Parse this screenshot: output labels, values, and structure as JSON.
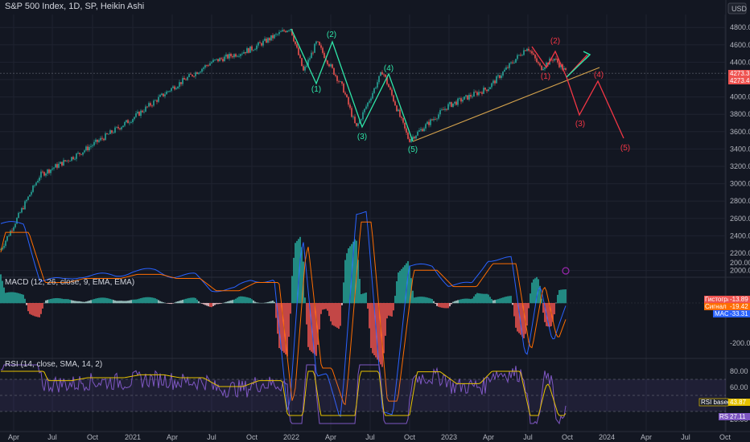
{
  "header": {
    "symbol_title": "S&P 500 Index, 1D, SP, Heikin Ashi",
    "currency": "USD"
  },
  "colors": {
    "background": "#131722",
    "up": "#26a69a",
    "down": "#ef5350",
    "wave_green": "#2ee6a8",
    "wave_red": "#f23645",
    "trendline": "#d4a24c",
    "macd_line": "#2962ff",
    "signal_line": "#ff6d00",
    "rsi_line": "#7e57c2",
    "rsi_ma": "#e6c200"
  },
  "x_axis": {
    "labels": [
      "Apr",
      "Jul",
      "Oct",
      "2021",
      "Apr",
      "Jul",
      "Oct",
      "2022",
      "Apr",
      "Jul",
      "Oct",
      "2023",
      "Apr",
      "Jul",
      "Oct",
      "2024",
      "Apr",
      "Jul",
      "Oct"
    ]
  },
  "price_axis": {
    "ticks": [
      "4800.00",
      "4600.00",
      "4400.00",
      "4200.00",
      "4000.00",
      "3800.00",
      "3600.00",
      "3400.00",
      "3200.00",
      "3000.00",
      "2800.00",
      "2600.00",
      "2400.00",
      "2200.00",
      "2000.00"
    ],
    "last_price": "4273.35",
    "last_price_2": "4273.46"
  },
  "macd": {
    "title": "MACD (12, 26, close, 9, EMA, EMA)",
    "ticks": [
      "200.00",
      "-200.00"
    ],
    "badge_histogram_label": "Гистограмма",
    "badge_histogram_value": "-13.89",
    "badge_signal_label": "Сигнал",
    "badge_signal_value": "-19.42",
    "badge_macd_label": "MACD",
    "badge_macd_value": "-33.31"
  },
  "rsi": {
    "title": "RSI (14, close, SMA, 14, 2)",
    "ticks": [
      "80.00",
      "60.00",
      "20.00"
    ],
    "ma_label": "RSI based MA",
    "ma_value": "43.87",
    "rsi_label": "RSI",
    "rsi_value": "27.11"
  },
  "wave_labels": {
    "green": [
      "(1)",
      "(2)",
      "(1)",
      "(3)",
      "(4)",
      "(3)",
      "(5)"
    ],
    "red": [
      "(1)",
      "(2)",
      "(3)",
      "(4)",
      "(5)"
    ]
  },
  "chart_data": {
    "type": "line",
    "title": "S&P 500 Index, 1D, SP, Heikin Ashi",
    "x": [
      "2020-03",
      "2020-06",
      "2020-09",
      "2021-01",
      "2021-04",
      "2021-07",
      "2021-10",
      "2022-01",
      "2022-02",
      "2022-03",
      "2022-05",
      "2022-06",
      "2022-08",
      "2022-10",
      "2023-01",
      "2023-04",
      "2023-07",
      "2023-08",
      "2023-09",
      "2023-10"
    ],
    "series": [
      {
        "values": [
          2237,
          3100,
          3350,
          3750,
          4100,
          4400,
          4550,
          4800,
          4290,
          4630,
          4100,
          3640,
          4300,
          3500,
          3900,
          4100,
          4580,
          4330,
          4450,
          4273
        ]
      }
    ],
    "ylim": [
      1950,
      4950
    ],
    "grid": true
  }
}
